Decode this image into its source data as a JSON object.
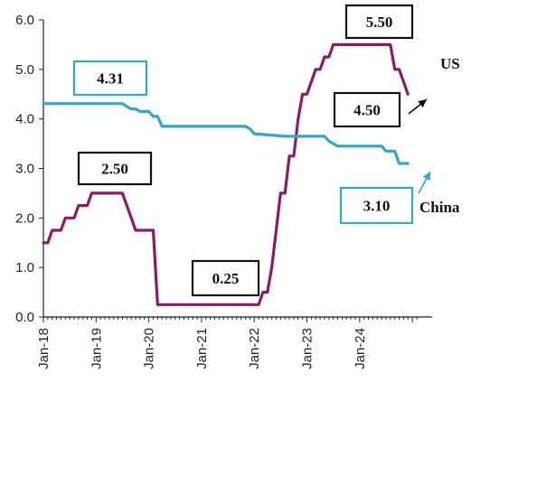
{
  "chart_data": {
    "type": "line",
    "xlabel": "",
    "ylabel": "",
    "ylim": [
      0,
      6
    ],
    "yticks": [
      "0.0",
      "1.0",
      "2.0",
      "3.0",
      "4.0",
      "5.0",
      "6.0"
    ],
    "xtick_labels": [
      "Jan-18",
      "Jan-19",
      "Jan-20",
      "Jan-21",
      "Jan-22",
      "Jan-23",
      "Jan-24"
    ],
    "grid": false,
    "series": [
      {
        "name": "US",
        "color": "#8B1A6B",
        "points": [
          [
            "2018-01",
            1.5
          ],
          [
            "2018-02",
            1.5
          ],
          [
            "2018-03",
            1.75
          ],
          [
            "2018-05",
            1.75
          ],
          [
            "2018-06",
            2.0
          ],
          [
            "2018-08",
            2.0
          ],
          [
            "2018-09",
            2.25
          ],
          [
            "2018-11",
            2.25
          ],
          [
            "2018-12",
            2.5
          ],
          [
            "2019-07",
            2.5
          ],
          [
            "2019-08",
            2.25
          ],
          [
            "2019-09",
            2.0
          ],
          [
            "2019-10",
            1.75
          ],
          [
            "2020-02",
            1.75
          ],
          [
            "2020-03",
            0.25
          ],
          [
            "2022-02",
            0.25
          ],
          [
            "2022-03",
            0.5
          ],
          [
            "2022-04",
            0.5
          ],
          [
            "2022-05",
            1.0
          ],
          [
            "2022-06",
            1.75
          ],
          [
            "2022-07",
            2.5
          ],
          [
            "2022-08",
            2.5
          ],
          [
            "2022-09",
            3.25
          ],
          [
            "2022-10",
            3.25
          ],
          [
            "2022-11",
            4.0
          ],
          [
            "2022-12",
            4.5
          ],
          [
            "2023-01",
            4.5
          ],
          [
            "2023-02",
            4.75
          ],
          [
            "2023-03",
            5.0
          ],
          [
            "2023-04",
            5.0
          ],
          [
            "2023-05",
            5.25
          ],
          [
            "2023-06",
            5.25
          ],
          [
            "2023-07",
            5.5
          ],
          [
            "2024-08",
            5.5
          ],
          [
            "2024-09",
            5.0
          ],
          [
            "2024-10",
            5.0
          ],
          [
            "2024-11",
            4.75
          ],
          [
            "2024-12",
            4.5
          ]
        ]
      },
      {
        "name": "China",
        "color": "#2FA8C9",
        "points": [
          [
            "2018-01",
            4.31
          ],
          [
            "2019-07",
            4.31
          ],
          [
            "2019-08",
            4.25
          ],
          [
            "2019-09",
            4.2
          ],
          [
            "2019-10",
            4.2
          ],
          [
            "2019-11",
            4.15
          ],
          [
            "2019-12",
            4.15
          ],
          [
            "2020-01",
            4.15
          ],
          [
            "2020-02",
            4.05
          ],
          [
            "2020-03",
            4.05
          ],
          [
            "2020-04",
            3.85
          ],
          [
            "2021-11",
            3.85
          ],
          [
            "2021-12",
            3.8
          ],
          [
            "2022-01",
            3.7
          ],
          [
            "2022-08",
            3.65
          ],
          [
            "2023-05",
            3.65
          ],
          [
            "2023-06",
            3.55
          ],
          [
            "2023-08",
            3.45
          ],
          [
            "2024-01",
            3.45
          ],
          [
            "2024-02",
            3.45
          ],
          [
            "2024-06",
            3.45
          ],
          [
            "2024-07",
            3.35
          ],
          [
            "2024-09",
            3.35
          ],
          [
            "2024-10",
            3.1
          ],
          [
            "2024-12",
            3.1
          ]
        ]
      }
    ],
    "annotations": [
      {
        "text": "4.31",
        "box_color": "#2FA8C9"
      },
      {
        "text": "2.50",
        "box_color": "#111111"
      },
      {
        "text": "0.25",
        "box_color": "#111111"
      },
      {
        "text": "5.50",
        "box_color": "#111111"
      },
      {
        "text": "4.50",
        "box_color": "#111111"
      },
      {
        "text": "3.10",
        "box_color": "#2FA8C9"
      }
    ],
    "series_labels": [
      "US",
      "China"
    ]
  }
}
